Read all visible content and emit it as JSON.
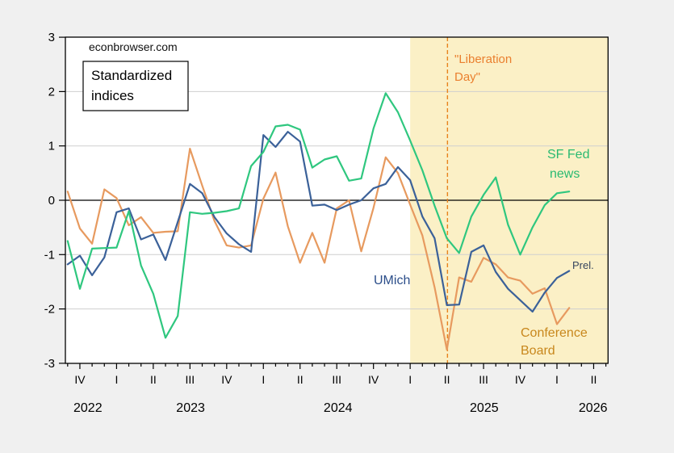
{
  "watermark": "econbrowser.com",
  "note_box": {
    "line1": "Standardized",
    "line2": "indices"
  },
  "annotations": {
    "vline_label_line1": "\"Liberation",
    "vline_label_line2": "Day\"",
    "series_green_label_line1": "SF Fed",
    "series_green_label_line2": "news",
    "series_blue_label": "UMich",
    "series_blue_flag": "Prel.",
    "series_orange_label_line1": "Conference",
    "series_orange_label_line2": "Board"
  },
  "colors": {
    "background": "#f0f0f0",
    "plot_bg": "#ffffff",
    "shading": "#fbf0c6",
    "grid": "#cfcfcf",
    "zero_line": "#000000",
    "border": "#000000",
    "blue": "#3b6199",
    "green": "#2fc77f",
    "orange": "#e79a5f",
    "vline": "#e8831d",
    "vline_text": "#ea7f2e",
    "green_text": "#2aba71",
    "blue_text": "#2c4e8a",
    "prel_text": "#36455e",
    "orange_text": "#c8871c"
  },
  "chart_data": {
    "type": "line",
    "title": "",
    "xlabel": "",
    "ylabel": "",
    "ylim": [
      -3,
      3
    ],
    "y_ticks": [
      -3,
      -2,
      -1,
      0,
      1,
      2,
      3
    ],
    "grid": "horizontal",
    "months": [
      "Sep 2022",
      "Oct 2022",
      "Nov 2022",
      "Dec 2022",
      "Jan 2023",
      "Feb 2023",
      "Mar 2023",
      "Apr 2023",
      "May 2023",
      "Jun 2023",
      "Jul 2023",
      "Aug 2023",
      "Sep 2023",
      "Oct 2023",
      "Nov 2023",
      "Dec 2023",
      "Jan 2024",
      "Feb 2024",
      "Mar 2024",
      "Apr 2024",
      "May 2024",
      "Jun 2024",
      "Jul 2024",
      "Aug 2024",
      "Sep 2024",
      "Oct 2024",
      "Nov 2024",
      "Dec 2024",
      "Jan 2025",
      "Feb 2025",
      "Mar 2025",
      "Apr 2025",
      "May 2025",
      "Jun 2025",
      "Jul 2025",
      "Aug 2025",
      "Sep 2025",
      "Oct 2025",
      "Nov 2025",
      "Dec 2025",
      "Jan 2026",
      "Feb 2026"
    ],
    "series": [
      {
        "name": "UMich",
        "color_key": "blue",
        "values": [
          -1.18,
          -1.02,
          -1.38,
          -1.05,
          -0.22,
          -0.15,
          -0.72,
          -0.63,
          -1.1,
          -0.4,
          0.3,
          0.13,
          -0.31,
          -0.61,
          -0.81,
          -0.95,
          1.2,
          0.98,
          1.26,
          1.08,
          -0.1,
          -0.08,
          -0.18,
          -0.08,
          0.0,
          0.22,
          0.3,
          0.61,
          0.37,
          -0.3,
          -0.7,
          -1.93,
          -1.92,
          -0.95,
          -0.83,
          -1.32,
          -1.63,
          -1.84,
          -2.05,
          -1.7,
          -1.43,
          -1.3
        ]
      },
      {
        "name": "Conference Board",
        "color_key": "orange",
        "values": [
          0.16,
          -0.52,
          -0.8,
          0.2,
          0.04,
          -0.46,
          -0.31,
          -0.6,
          -0.58,
          -0.57,
          0.95,
          0.27,
          -0.38,
          -0.83,
          -0.87,
          -0.83,
          0.03,
          0.51,
          -0.48,
          -1.15,
          -0.6,
          -1.15,
          -0.15,
          0.0,
          -0.94,
          -0.14,
          0.79,
          0.5,
          -0.08,
          -0.65,
          -1.6,
          -2.75,
          -1.42,
          -1.5,
          -1.06,
          -1.18,
          -1.42,
          -1.48,
          -1.72,
          -1.62,
          -2.28,
          -1.98
        ]
      },
      {
        "name": "SF Fed news",
        "color_key": "green",
        "values": [
          -0.75,
          -1.63,
          -0.89,
          -0.88,
          -0.87,
          -0.2,
          -1.2,
          -1.72,
          -2.53,
          -2.13,
          -0.22,
          -0.25,
          -0.23,
          -0.2,
          -0.15,
          0.63,
          0.89,
          1.36,
          1.39,
          1.3,
          0.6,
          0.75,
          0.81,
          0.36,
          0.4,
          1.32,
          1.97,
          1.62,
          1.1,
          0.55,
          -0.1,
          -0.7,
          -0.97,
          -0.3,
          0.1,
          0.42,
          -0.45,
          -1.0,
          -0.5,
          -0.09,
          0.13,
          0.16
        ]
      }
    ],
    "quarter_ticks": [
      {
        "m": 1,
        "label": "IV"
      },
      {
        "m": 4,
        "label": "I"
      },
      {
        "m": 7,
        "label": "II"
      },
      {
        "m": 10,
        "label": "III"
      },
      {
        "m": 13,
        "label": "IV"
      },
      {
        "m": 16,
        "label": "I"
      },
      {
        "m": 19,
        "label": "II"
      },
      {
        "m": 22,
        "label": "III"
      },
      {
        "m": 25,
        "label": "IV"
      },
      {
        "m": 28,
        "label": "I"
      },
      {
        "m": 31,
        "label": "II"
      },
      {
        "m": 34,
        "label": "III"
      },
      {
        "m": 37,
        "label": "IV"
      },
      {
        "m": 40,
        "label": "I"
      },
      {
        "m": 43,
        "label": "II"
      }
    ],
    "year_labels": [
      {
        "m": 1.65,
        "label": "2022"
      },
      {
        "m": 10.05,
        "label": "2023"
      },
      {
        "m": 22.1,
        "label": "2024"
      },
      {
        "m": 34.05,
        "label": "2025"
      },
      {
        "m": 42.95,
        "label": "2026"
      }
    ],
    "shaded_region": {
      "start_month": "Jan 2025",
      "start_m": 28,
      "end": "axis-end"
    },
    "event_vline": {
      "label": "\"Liberation Day\"",
      "m": 31.05
    }
  }
}
